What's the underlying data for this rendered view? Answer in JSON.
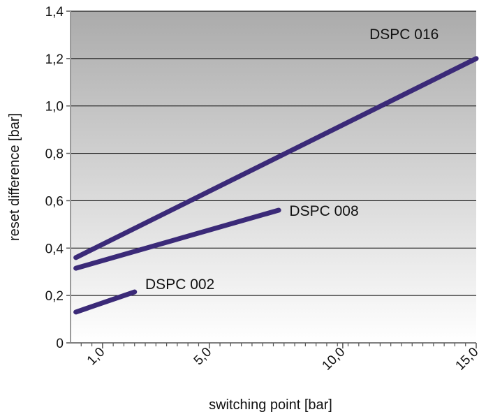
{
  "chart_data": {
    "type": "line",
    "title": "",
    "xlabel": "switching point [bar]",
    "ylabel": "reset difference [bar]",
    "xlim": [
      -0.2,
      15.0
    ],
    "ylim": [
      0,
      1.4
    ],
    "x_ticks": [
      {
        "value": 1.0,
        "label": "1,0"
      },
      {
        "value": 5.0,
        "label": "5,0"
      },
      {
        "value": 10.0,
        "label": "10,0"
      },
      {
        "value": 15.0,
        "label": "15,0"
      }
    ],
    "x_minor_ticks": [
      0.2,
      0.6,
      1.4,
      1.8,
      2.2,
      2.6,
      3.0,
      3.4,
      3.8,
      4.2,
      4.6,
      5.4,
      5.8,
      6.2,
      6.6,
      7.0,
      7.4,
      7.8,
      8.2,
      8.6,
      9.0,
      9.4,
      9.8,
      10.2,
      10.6,
      11.0,
      11.4,
      11.8,
      12.2,
      12.6,
      13.0,
      13.4,
      13.8,
      14.2,
      14.6
    ],
    "y_ticks": [
      {
        "value": 0,
        "label": "0"
      },
      {
        "value": 0.2,
        "label": "0,2"
      },
      {
        "value": 0.4,
        "label": "0,4"
      },
      {
        "value": 0.6,
        "label": "0,6"
      },
      {
        "value": 0.8,
        "label": "0,8"
      },
      {
        "value": 1.0,
        "label": "1,0"
      },
      {
        "value": 1.2,
        "label": "1,2"
      },
      {
        "value": 1.4,
        "label": "1,4"
      }
    ],
    "grid": "horizontal",
    "background_gradient": [
      "#ababab",
      "#ffffff"
    ],
    "line_color": "#3b2a78",
    "series": [
      {
        "name": "DSPC 002",
        "x": [
          0.0,
          2.2
        ],
        "y": [
          0.13,
          0.215
        ],
        "label_at": {
          "x": 2.6,
          "y": 0.25
        }
      },
      {
        "name": "DSPC 008",
        "x": [
          0.0,
          7.6
        ],
        "y": [
          0.315,
          0.56
        ],
        "label_at": {
          "x": 8.0,
          "y": 0.56
        }
      },
      {
        "name": "DSPC 016",
        "x": [
          0.0,
          15.0
        ],
        "y": [
          0.36,
          1.2
        ],
        "label_at": {
          "x": 11.0,
          "y": 1.305
        }
      }
    ]
  }
}
